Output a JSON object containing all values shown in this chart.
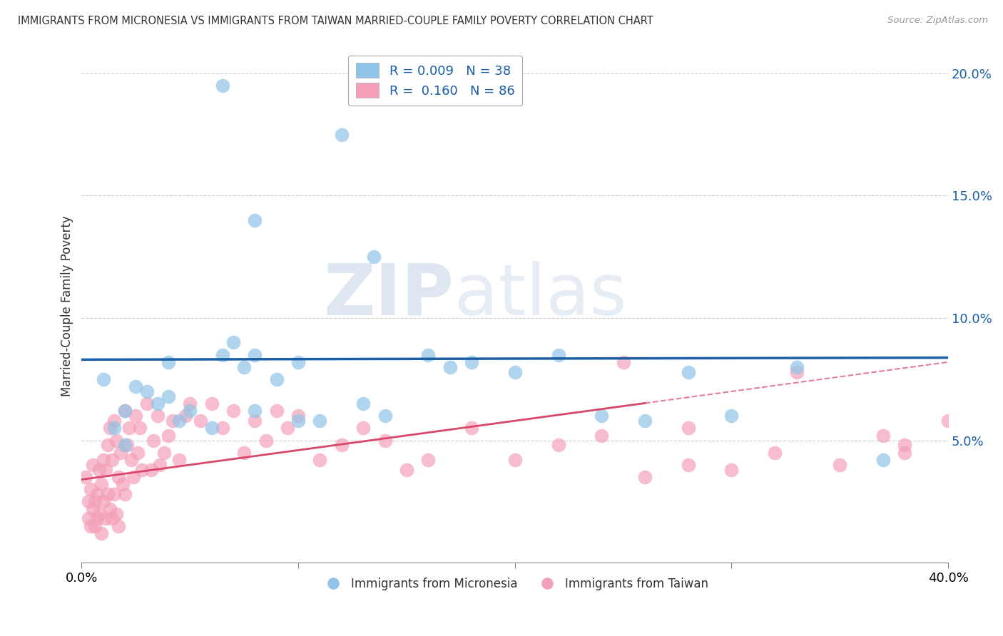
{
  "title": "IMMIGRANTS FROM MICRONESIA VS IMMIGRANTS FROM TAIWAN MARRIED-COUPLE FAMILY POVERTY CORRELATION CHART",
  "source": "Source: ZipAtlas.com",
  "ylabel": "Married-Couple Family Poverty",
  "yticks": [
    0.0,
    0.05,
    0.1,
    0.15,
    0.2
  ],
  "ytick_labels": [
    "",
    "5.0%",
    "10.0%",
    "15.0%",
    "20.0%"
  ],
  "xlim": [
    0.0,
    0.4
  ],
  "ylim": [
    0.0,
    0.21
  ],
  "legend_blue_R": "0.009",
  "legend_blue_N": "38",
  "legend_pink_R": "0.160",
  "legend_pink_N": "86",
  "blue_color": "#90c4e8",
  "pink_color": "#f4a0b8",
  "trendline_blue_color": "#1a5fa8",
  "trendline_pink_color": "#d9476a",
  "watermark_zip": "ZIP",
  "watermark_atlas": "atlas",
  "blue_scatter_x": [
    0.065,
    0.08,
    0.12,
    0.135,
    0.01,
    0.015,
    0.02,
    0.02,
    0.025,
    0.03,
    0.035,
    0.04,
    0.04,
    0.045,
    0.05,
    0.06,
    0.065,
    0.07,
    0.075,
    0.08,
    0.08,
    0.09,
    0.1,
    0.1,
    0.11,
    0.13,
    0.14,
    0.16,
    0.17,
    0.18,
    0.2,
    0.22,
    0.24,
    0.26,
    0.28,
    0.3,
    0.33,
    0.37
  ],
  "blue_scatter_y": [
    0.195,
    0.14,
    0.175,
    0.125,
    0.075,
    0.055,
    0.062,
    0.048,
    0.072,
    0.07,
    0.065,
    0.082,
    0.068,
    0.058,
    0.062,
    0.055,
    0.085,
    0.09,
    0.08,
    0.062,
    0.085,
    0.075,
    0.082,
    0.058,
    0.058,
    0.065,
    0.06,
    0.085,
    0.08,
    0.082,
    0.078,
    0.085,
    0.06,
    0.058,
    0.078,
    0.06,
    0.08,
    0.042
  ],
  "pink_scatter_x": [
    0.002,
    0.003,
    0.003,
    0.004,
    0.004,
    0.005,
    0.005,
    0.006,
    0.006,
    0.007,
    0.007,
    0.008,
    0.008,
    0.009,
    0.009,
    0.01,
    0.01,
    0.011,
    0.011,
    0.012,
    0.012,
    0.013,
    0.013,
    0.014,
    0.014,
    0.015,
    0.015,
    0.016,
    0.016,
    0.017,
    0.017,
    0.018,
    0.019,
    0.02,
    0.02,
    0.021,
    0.022,
    0.023,
    0.024,
    0.025,
    0.026,
    0.027,
    0.028,
    0.03,
    0.032,
    0.033,
    0.035,
    0.036,
    0.038,
    0.04,
    0.042,
    0.045,
    0.048,
    0.05,
    0.055,
    0.06,
    0.065,
    0.07,
    0.075,
    0.08,
    0.085,
    0.09,
    0.095,
    0.1,
    0.11,
    0.12,
    0.13,
    0.14,
    0.15,
    0.16,
    0.18,
    0.2,
    0.22,
    0.24,
    0.26,
    0.28,
    0.3,
    0.32,
    0.35,
    0.37,
    0.38,
    0.4,
    0.25,
    0.28,
    0.33,
    0.38
  ],
  "pink_scatter_y": [
    0.035,
    0.025,
    0.018,
    0.03,
    0.015,
    0.04,
    0.022,
    0.025,
    0.015,
    0.028,
    0.018,
    0.038,
    0.02,
    0.032,
    0.012,
    0.042,
    0.025,
    0.038,
    0.018,
    0.048,
    0.028,
    0.055,
    0.022,
    0.042,
    0.018,
    0.058,
    0.028,
    0.05,
    0.02,
    0.035,
    0.015,
    0.045,
    0.032,
    0.062,
    0.028,
    0.048,
    0.055,
    0.042,
    0.035,
    0.06,
    0.045,
    0.055,
    0.038,
    0.065,
    0.038,
    0.05,
    0.06,
    0.04,
    0.045,
    0.052,
    0.058,
    0.042,
    0.06,
    0.065,
    0.058,
    0.065,
    0.055,
    0.062,
    0.045,
    0.058,
    0.05,
    0.062,
    0.055,
    0.06,
    0.042,
    0.048,
    0.055,
    0.05,
    0.038,
    0.042,
    0.055,
    0.042,
    0.048,
    0.052,
    0.035,
    0.055,
    0.038,
    0.045,
    0.04,
    0.052,
    0.045,
    0.058,
    0.082,
    0.04,
    0.078,
    0.048
  ]
}
